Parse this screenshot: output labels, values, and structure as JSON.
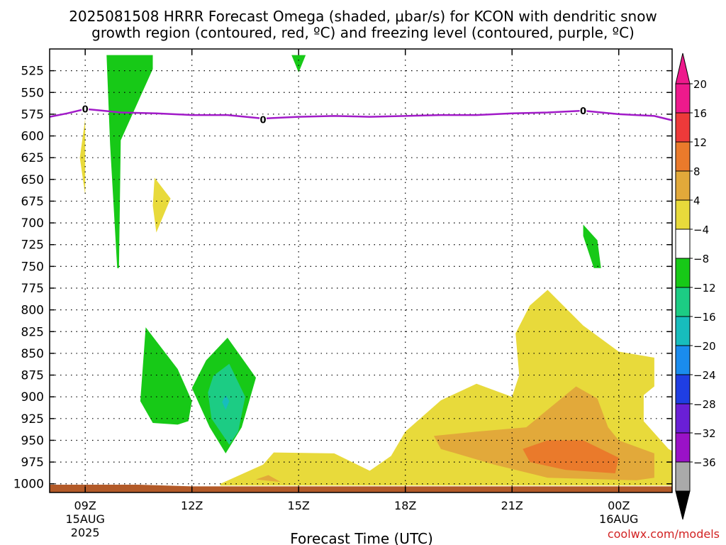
{
  "chart_data": {
    "type": "heatmap",
    "title_line1": "2025081508 HRRR Forecast Omega (shaded, μbar/s) for KCON with dendritic snow",
    "title_line2": "growth region (contoured, red, ºC) and freezing level (contoured, purple, ºC)",
    "xlabel": "Forecast Time (UTC)",
    "ylabel": "",
    "x_range_hours": [
      8,
      25.5
    ],
    "y_range_mb": [
      500,
      1010
    ],
    "grid": true,
    "x_ticks": [
      {
        "hour": 9,
        "label": "09Z",
        "date": "15AUG",
        "year": "2025"
      },
      {
        "hour": 12,
        "label": "12Z",
        "date": "",
        "year": ""
      },
      {
        "hour": 15,
        "label": "15Z",
        "date": "",
        "year": ""
      },
      {
        "hour": 18,
        "label": "18Z",
        "date": "",
        "year": ""
      },
      {
        "hour": 21,
        "label": "21Z",
        "date": "",
        "year": ""
      },
      {
        "hour": 24,
        "label": "00Z",
        "date": "16AUG",
        "year": ""
      }
    ],
    "y_ticks": [
      {
        "value": 525,
        "label": "525"
      },
      {
        "value": 550,
        "label": "550"
      },
      {
        "value": 575,
        "label": "575"
      },
      {
        "value": 600,
        "label": "600"
      },
      {
        "value": 625,
        "label": "625"
      },
      {
        "value": 650,
        "label": "650"
      },
      {
        "value": 675,
        "label": "675"
      },
      {
        "value": 700,
        "label": "700"
      },
      {
        "value": 725,
        "label": "725"
      },
      {
        "value": 750,
        "label": "750"
      },
      {
        "value": 775,
        "label": "775"
      },
      {
        "value": 800,
        "label": "800"
      },
      {
        "value": 825,
        "label": "825"
      },
      {
        "value": 850,
        "label": "850"
      },
      {
        "value": 875,
        "label": "875"
      },
      {
        "value": 900,
        "label": "900"
      },
      {
        "value": 925,
        "label": "925"
      },
      {
        "value": 950,
        "label": "950"
      },
      {
        "value": 975,
        "label": "975"
      },
      {
        "value": 1000,
        "label": "1000"
      }
    ],
    "colorbar": {
      "labels": [
        "20",
        "16",
        "12",
        "8",
        "4",
        "−4",
        "−8",
        "−12",
        "−16",
        "−20",
        "−24",
        "−28",
        "−32",
        "−36"
      ],
      "bins": [
        {
          "from": 20,
          "to": 24,
          "color": "#ee1a8c"
        },
        {
          "from": 16,
          "to": 20,
          "color": "#ee3a3a"
        },
        {
          "from": 12,
          "to": 16,
          "color": "#ea7a2b"
        },
        {
          "from": 8,
          "to": 12,
          "color": "#e2a93a"
        },
        {
          "from": 4,
          "to": 8,
          "color": "#e8da3b"
        },
        {
          "from": -4,
          "to": 4,
          "color": "#ffffff"
        },
        {
          "from": -8,
          "to": -4,
          "color": "#17c917"
        },
        {
          "from": -12,
          "to": -8,
          "color": "#1ccc84"
        },
        {
          "from": -16,
          "to": -12,
          "color": "#17bdbd"
        },
        {
          "from": -20,
          "to": -16,
          "color": "#1a8cee"
        },
        {
          "from": -24,
          "to": -20,
          "color": "#1f3ee3"
        },
        {
          "from": -28,
          "to": -24,
          "color": "#6a1fd6"
        },
        {
          "from": -32,
          "to": -28,
          "color": "#9a12c7"
        },
        {
          "from": -36,
          "to": -32,
          "color": "#aaaaaa"
        }
      ]
    },
    "omega_regions": [
      {
        "value": -6,
        "color": "#17c917",
        "points": [
          [
            9.6,
            507
          ],
          [
            10.9,
            507
          ],
          [
            10.9,
            523
          ],
          [
            10.0,
            605
          ],
          [
            9.95,
            752
          ],
          [
            9.9,
            752
          ],
          [
            9.7,
            610
          ]
        ]
      },
      {
        "value": -6,
        "color": "#17c917",
        "points": [
          [
            14.8,
            507
          ],
          [
            15.2,
            507
          ],
          [
            15.0,
            527
          ]
        ]
      },
      {
        "value": 6,
        "color": "#e8da3b",
        "points": [
          [
            9.0,
            580
          ],
          [
            8.85,
            625
          ],
          [
            9.0,
            668
          ]
        ]
      },
      {
        "value": 6,
        "color": "#e8da3b",
        "points": [
          [
            10.95,
            648
          ],
          [
            11.4,
            672
          ],
          [
            11.0,
            711
          ],
          [
            10.9,
            680
          ]
        ]
      },
      {
        "value": -6,
        "color": "#17c917",
        "points": [
          [
            10.7,
            820
          ],
          [
            11.6,
            868
          ],
          [
            12.0,
            905
          ],
          [
            11.9,
            928
          ],
          [
            11.6,
            932
          ],
          [
            10.9,
            930
          ],
          [
            10.55,
            905
          ]
        ]
      },
      {
        "value": -6,
        "color": "#17c917",
        "points": [
          [
            13.0,
            832
          ],
          [
            13.8,
            878
          ],
          [
            13.4,
            935
          ],
          [
            12.95,
            965
          ],
          [
            12.5,
            935
          ],
          [
            12.0,
            890
          ],
          [
            12.4,
            858
          ]
        ]
      },
      {
        "value": -9,
        "color": "#1ccc84",
        "points": [
          [
            13.05,
            862
          ],
          [
            13.5,
            900
          ],
          [
            13.3,
            940
          ],
          [
            13.05,
            955
          ],
          [
            12.55,
            925
          ],
          [
            12.45,
            895
          ],
          [
            12.6,
            876
          ]
        ]
      },
      {
        "value": -14,
        "color": "#17bdbd",
        "points": [
          [
            12.95,
            898
          ],
          [
            13.05,
            905
          ],
          [
            12.95,
            915
          ],
          [
            12.85,
            906
          ]
        ]
      },
      {
        "value": -6,
        "color": "#17c917",
        "points": [
          [
            23.0,
            702
          ],
          [
            23.4,
            720
          ],
          [
            23.5,
            752
          ],
          [
            23.3,
            752
          ],
          [
            23.0,
            715
          ]
        ]
      },
      {
        "value": 6,
        "color": "#e8da3b",
        "points": [
          [
            12.8,
            1000
          ],
          [
            14.0,
            978
          ],
          [
            14.3,
            964
          ],
          [
            16.0,
            965
          ],
          [
            17.0,
            985
          ],
          [
            17.6,
            968
          ],
          [
            18.0,
            940
          ],
          [
            19.0,
            904
          ],
          [
            20.0,
            885
          ],
          [
            21.0,
            900
          ],
          [
            21.2,
            875
          ],
          [
            21.1,
            827
          ],
          [
            21.5,
            795
          ],
          [
            22.0,
            777
          ],
          [
            23.0,
            818
          ],
          [
            24.0,
            848
          ],
          [
            25.0,
            855
          ],
          [
            25.0,
            888
          ],
          [
            24.7,
            898
          ],
          [
            24.7,
            928
          ],
          [
            25.4,
            960
          ],
          [
            25.5,
            962
          ],
          [
            25.5,
            1002
          ],
          [
            12.8,
            1002
          ]
        ]
      },
      {
        "value": 10,
        "color": "#e2a93a",
        "points": [
          [
            13.8,
            995
          ],
          [
            14.15,
            990
          ],
          [
            14.5,
            998
          ]
        ]
      },
      {
        "value": 10,
        "color": "#e2a93a",
        "points": [
          [
            18.8,
            945
          ],
          [
            20.0,
            940
          ],
          [
            21.4,
            935
          ],
          [
            22.8,
            888
          ],
          [
            23.4,
            902
          ],
          [
            23.7,
            935
          ],
          [
            24.0,
            950
          ],
          [
            25.0,
            965
          ],
          [
            25.0,
            993
          ],
          [
            24.5,
            996
          ],
          [
            22.0,
            993
          ],
          [
            20.5,
            978
          ],
          [
            19.0,
            960
          ]
        ]
      },
      {
        "value": 14,
        "color": "#ea7a2b",
        "points": [
          [
            21.3,
            960
          ],
          [
            22.0,
            950
          ],
          [
            23.0,
            950
          ],
          [
            24.0,
            970
          ],
          [
            23.9,
            988
          ],
          [
            22.5,
            984
          ],
          [
            21.5,
            975
          ]
        ]
      }
    ],
    "freezing_level": {
      "name": "Freezing level",
      "color": "#a11ac8",
      "label": "0",
      "label_positions": [
        [
          9.0,
          569
        ],
        [
          14.0,
          581
        ],
        [
          23.0,
          571
        ]
      ],
      "points": [
        [
          8.0,
          578
        ],
        [
          8.5,
          574
        ],
        [
          9.0,
          569
        ],
        [
          9.5,
          571
        ],
        [
          10.0,
          573
        ],
        [
          11.0,
          574
        ],
        [
          12.0,
          576
        ],
        [
          13.0,
          576
        ],
        [
          14.0,
          580
        ],
        [
          15.0,
          578
        ],
        [
          16.0,
          577
        ],
        [
          17.0,
          578
        ],
        [
          18.0,
          577
        ],
        [
          19.0,
          576
        ],
        [
          20.0,
          576
        ],
        [
          21.0,
          574
        ],
        [
          22.0,
          573
        ],
        [
          23.0,
          571
        ],
        [
          24.0,
          575
        ],
        [
          25.0,
          577
        ],
        [
          25.5,
          582
        ]
      ]
    },
    "surface": {
      "color": "#b35a28",
      "from_mb": 1002,
      "to_mb": 1010,
      "hump": [
        [
          8.0,
          1001
        ],
        [
          10.5,
          1001
        ],
        [
          12.0,
          1003
        ],
        [
          25.5,
          1003
        ]
      ]
    }
  },
  "credit": "coolwx.com/models",
  "colors": {
    "text": "#000000",
    "credit": "#d22222",
    "axis": "#000000"
  }
}
